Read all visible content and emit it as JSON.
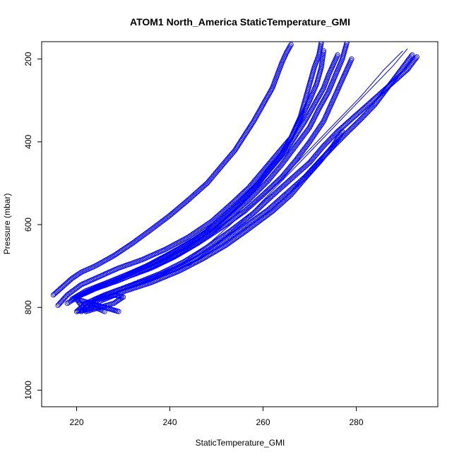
{
  "chart_data": {
    "type": "scatter",
    "title": "ATOM1 North_America StaticTemperature_GMI",
    "xlabel": "StaticTemperature_GMI",
    "ylabel": "Pressure (mbar)",
    "xlim": [
      212.5,
      297.5
    ],
    "ylim": [
      1040,
      158
    ],
    "y_reversed": true,
    "x_ticks": [
      220,
      240,
      260,
      280
    ],
    "y_ticks": [
      200,
      400,
      600,
      800,
      1000
    ],
    "marker": "open-circle",
    "grid": false,
    "legend": "none",
    "color": "#0000ff",
    "series": [
      {
        "x": [
          215,
          217,
          219,
          221,
          224,
          228,
          232,
          236,
          240,
          244,
          248,
          251,
          254,
          256,
          258,
          260,
          262,
          263,
          264,
          265,
          266
        ],
        "y": [
          770,
          750,
          730,
          715,
          700,
          675,
          645,
          612,
          578,
          540,
          500,
          460,
          420,
          385,
          350,
          310,
          270,
          240,
          210,
          185,
          165
        ]
      },
      {
        "x": [
          216,
          218,
          221,
          225,
          229,
          234,
          239,
          244,
          249,
          253,
          257,
          260,
          263,
          266,
          268,
          269,
          270,
          271,
          272,
          272.5
        ],
        "y": [
          795,
          770,
          745,
          725,
          705,
          685,
          660,
          630,
          592,
          552,
          510,
          470,
          430,
          390,
          340,
          300,
          260,
          220,
          190,
          160
        ]
      },
      {
        "x": [
          218,
          221,
          225,
          230,
          235,
          240,
          245,
          250,
          254,
          258,
          261,
          264,
          266,
          268,
          270,
          271.5,
          272.5,
          273
        ],
        "y": [
          790,
          770,
          748,
          725,
          700,
          670,
          638,
          600,
          560,
          515,
          470,
          430,
          390,
          345,
          300,
          260,
          220,
          180
        ]
      },
      {
        "x": [
          219,
          222,
          227,
          232,
          237,
          242,
          247,
          251,
          255,
          259,
          262,
          265,
          267,
          269,
          271,
          273,
          274,
          275,
          276
        ],
        "y": [
          780,
          760,
          738,
          715,
          690,
          660,
          625,
          585,
          545,
          500,
          460,
          420,
          385,
          350,
          310,
          270,
          240,
          215,
          190
        ]
      },
      {
        "x": [
          220,
          224,
          229,
          234,
          239,
          244,
          249,
          253,
          257,
          261,
          264,
          267,
          270,
          272,
          274,
          275.5,
          277,
          278
        ],
        "y": [
          775,
          755,
          735,
          712,
          688,
          657,
          620,
          580,
          540,
          495,
          455,
          410,
          365,
          320,
          280,
          240,
          200,
          160
        ]
      },
      {
        "x": [
          221,
          225,
          230,
          236,
          241,
          246,
          251,
          256,
          260,
          264,
          267,
          270,
          273,
          275,
          277,
          279
        ],
        "y": [
          770,
          750,
          730,
          705,
          678,
          645,
          608,
          568,
          528,
          485,
          445,
          400,
          350,
          300,
          250,
          200
        ]
      },
      {
        "x": [
          222,
          226,
          232,
          238,
          243,
          248,
          253,
          258,
          262,
          266,
          270,
          273,
          276,
          279,
          282,
          285,
          288,
          291,
          293
        ],
        "y": [
          790,
          770,
          745,
          718,
          690,
          655,
          615,
          572,
          530,
          490,
          450,
          410,
          375,
          345,
          315,
          285,
          255,
          225,
          195
        ]
      },
      {
        "x": [
          224,
          229,
          235,
          241,
          246,
          251,
          256,
          261,
          265,
          269,
          272,
          275,
          278,
          281,
          284,
          286,
          288,
          290,
          292
        ],
        "y": [
          780,
          758,
          735,
          708,
          680,
          645,
          605,
          565,
          525,
          485,
          448,
          412,
          378,
          345,
          310,
          280,
          250,
          220,
          190
        ]
      },
      {
        "x": [
          225,
          230,
          236,
          242,
          247,
          252,
          257,
          262,
          266,
          269,
          272,
          275,
          277
        ],
        "y": [
          785,
          762,
          740,
          712,
          683,
          650,
          610,
          568,
          528,
          488,
          450,
          410,
          375
        ]
      },
      {
        "x": [
          221,
          223,
          225,
          228,
          230,
          228,
          225,
          222,
          220,
          223,
          226,
          229,
          226,
          222,
          220,
          224,
          226
        ],
        "y": [
          810,
          790,
          780,
          770,
          775,
          790,
          800,
          810,
          780,
          790,
          800,
          810,
          800,
          790,
          810,
          800,
          810
        ]
      }
    ],
    "lines": [
      {
        "x": [
          244,
          251,
          258,
          264,
          270,
          276,
          282,
          288,
          291
        ],
        "y": [
          700,
          640,
          565,
          495,
          425,
          355,
          285,
          215,
          175
        ]
      },
      {
        "x": [
          242,
          249,
          256,
          263,
          269,
          275,
          281,
          286,
          290
        ],
        "y": [
          700,
          640,
          570,
          500,
          430,
          360,
          290,
          225,
          180
        ]
      }
    ]
  }
}
